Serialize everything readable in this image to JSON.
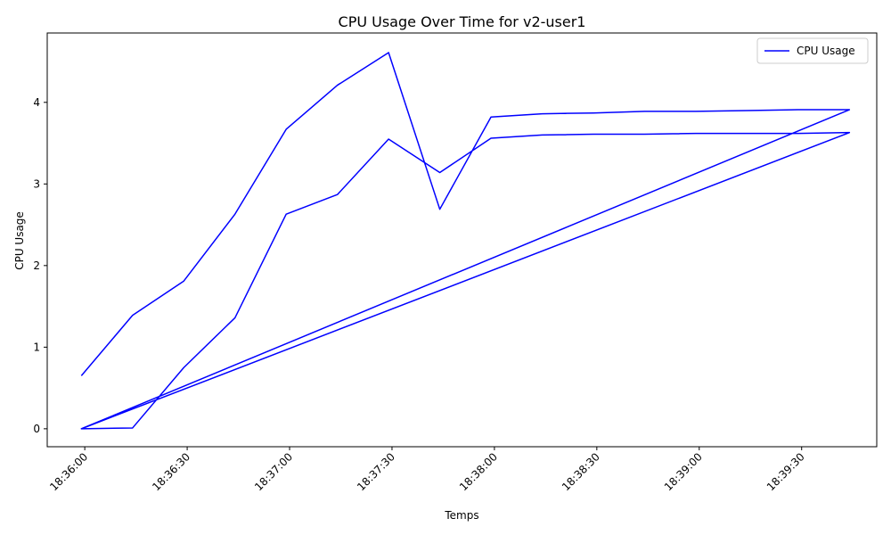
{
  "chart_data": {
    "type": "line",
    "title": "CPU Usage Over Time for v2-user1",
    "xlabel": "Temps",
    "ylabel": "CPU Usage",
    "x_tick_labels": [
      "18:36:00",
      "18:36:30",
      "18:37:00",
      "18:37:30",
      "18:38:00",
      "18:38:30",
      "18:39:00",
      "18:39:30"
    ],
    "x_tick_values": [
      "18:36:00",
      "18:36:30",
      "18:37:00",
      "18:37:30",
      "18:38:00",
      "18:38:30",
      "18:39:00",
      "18:39:30"
    ],
    "y_tick_labels": [
      "0",
      "1",
      "2",
      "3",
      "4"
    ],
    "y_tick_values": [
      0,
      1,
      2,
      3,
      4
    ],
    "xlim": [
      "18:35:49",
      "18:39:52"
    ],
    "ylim": [
      -0.22,
      4.85
    ],
    "grid": false,
    "legend_position": "top-right",
    "series": [
      {
        "name": "CPU Usage",
        "color": "#0000ff",
        "x": [
          "18:35:59",
          "18:36:14",
          "18:36:29",
          "18:36:44",
          "18:36:59",
          "18:37:14",
          "18:37:29",
          "18:37:44",
          "18:37:59",
          "18:38:14",
          "18:38:29",
          "18:38:44",
          "18:38:59",
          "18:39:14",
          "18:39:29",
          "18:39:44",
          "18:35:59",
          "18:36:14",
          "18:36:29",
          "18:36:44",
          "18:36:59",
          "18:37:14",
          "18:37:29",
          "18:37:44",
          "18:37:59",
          "18:38:14",
          "18:38:29",
          "18:38:44",
          "18:38:59",
          "18:39:14",
          "18:39:29",
          "18:39:44",
          "18:35:59"
        ],
        "y": [
          0.65,
          1.39,
          1.81,
          2.63,
          3.67,
          4.21,
          4.61,
          2.69,
          3.82,
          3.86,
          3.87,
          3.89,
          3.89,
          3.9,
          3.91,
          3.91,
          0.0,
          0.01,
          0.75,
          1.36,
          2.63,
          2.87,
          3.55,
          3.14,
          3.56,
          3.6,
          3.61,
          3.61,
          3.62,
          3.62,
          3.62,
          3.63,
          0.0
        ]
      }
    ]
  }
}
